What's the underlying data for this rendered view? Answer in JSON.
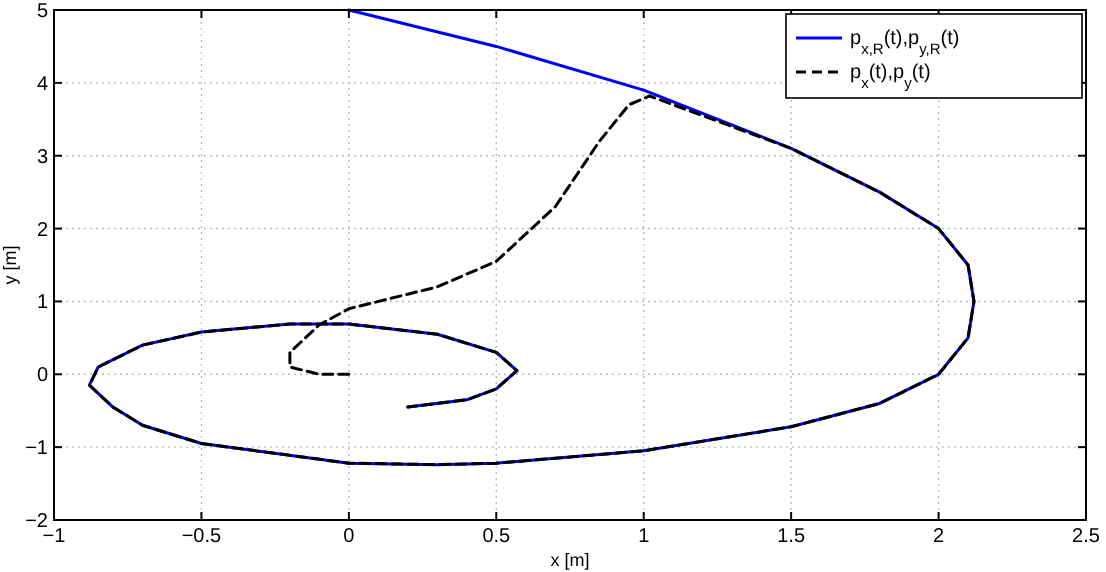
{
  "chart_data": {
    "type": "line",
    "xlabel": "x [m]",
    "ylabel": "y [m]",
    "xlim": [
      -1,
      2.5
    ],
    "ylim": [
      -2,
      5
    ],
    "xticks": [
      {
        "value": -1,
        "label": "−1"
      },
      {
        "value": -0.5,
        "label": "−0.5"
      },
      0,
      0.5,
      1,
      1.5,
      2,
      2.5
    ],
    "yticks": [
      {
        "value": -2,
        "label": "−2"
      },
      {
        "value": -1,
        "label": "−1"
      },
      0,
      1,
      2,
      3,
      4,
      5
    ],
    "grid": true,
    "legend": "top right",
    "marker": "none",
    "series": [
      {
        "name": "p$_{x,R}$(t),p$_{y,R}$(t)",
        "color": "#0000ff",
        "line_style": "solid",
        "x": [
          0,
          0.5,
          1,
          1.5,
          1.8,
          2,
          2.1,
          2.12,
          2.1,
          2,
          1.8,
          1.5,
          1,
          0.5,
          0.3,
          0,
          -0.5,
          -0.7,
          -0.8,
          -0.88,
          -0.85,
          -0.7,
          -0.5,
          -0.2,
          0,
          0.3,
          0.5,
          0.57,
          0.5,
          0.4,
          0.2
        ],
        "values": [
          5,
          4.5,
          3.9,
          3.1,
          2.5,
          2,
          1.5,
          1,
          0.5,
          0,
          -0.4,
          -0.72,
          -1.05,
          -1.22,
          -1.24,
          -1.22,
          -0.95,
          -0.7,
          -0.45,
          -0.15,
          0.1,
          0.4,
          0.58,
          0.69,
          0.69,
          0.55,
          0.3,
          0.05,
          -0.2,
          -0.35,
          -0.45
        ]
      },
      {
        "name": "p$_{x}$(t),p$_{y}$(t)",
        "color": "#000000",
        "line_style": "dashed",
        "x": [
          0,
          -0.1,
          -0.2,
          -0.2,
          -0.1,
          0,
          0.3,
          0.5,
          0.7,
          0.85,
          0.95,
          1.02,
          1.5,
          1.8,
          2,
          2.1,
          2.12,
          2.1,
          2,
          1.8,
          1.5,
          1,
          0.5,
          0.3,
          0,
          -0.5,
          -0.7,
          -0.8,
          -0.88,
          -0.85,
          -0.7,
          -0.5,
          -0.2,
          0,
          0.3,
          0.5,
          0.57,
          0.5,
          0.4,
          0.2
        ],
        "values": [
          0,
          0,
          0.1,
          0.3,
          0.68,
          0.9,
          1.2,
          1.55,
          2.3,
          3.2,
          3.7,
          3.82,
          3.1,
          2.5,
          2,
          1.5,
          1,
          0.5,
          0,
          -0.4,
          -0.72,
          -1.05,
          -1.22,
          -1.24,
          -1.22,
          -0.95,
          -0.7,
          -0.45,
          -0.15,
          0.1,
          0.4,
          0.58,
          0.69,
          0.69,
          0.55,
          0.3,
          0.05,
          -0.2,
          -0.35,
          -0.45
        ]
      }
    ]
  }
}
